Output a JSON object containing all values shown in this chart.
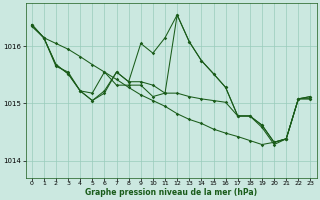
{
  "background_color": "#cbe8e0",
  "plot_bg_color": "#cbe8e0",
  "grid_color": "#99ccbb",
  "line_color": "#1a5c1a",
  "xlabel": "Graphe pression niveau de la mer (hPa)",
  "xlim": [
    -0.5,
    23.5
  ],
  "ylim": [
    1013.7,
    1016.75
  ],
  "yticks": [
    1014,
    1015,
    1016
  ],
  "xticks": [
    0,
    1,
    2,
    3,
    4,
    5,
    6,
    7,
    8,
    9,
    10,
    11,
    12,
    13,
    14,
    15,
    16,
    17,
    18,
    19,
    20,
    21,
    22,
    23
  ],
  "series": [
    [
      1016.35,
      1016.15,
      1016.05,
      1015.95,
      1015.82,
      1015.68,
      1015.55,
      1015.42,
      1015.28,
      1015.15,
      1015.05,
      1014.95,
      1014.82,
      1014.72,
      1014.65,
      1014.55,
      1014.48,
      1014.42,
      1014.35,
      1014.28,
      1014.32,
      1014.38,
      1015.08,
      1015.08
    ],
    [
      1016.38,
      1016.15,
      1015.65,
      1015.55,
      1015.22,
      1015.18,
      1015.55,
      1015.32,
      1015.32,
      1015.32,
      1015.12,
      1015.18,
      1015.18,
      1015.12,
      1015.08,
      1015.05,
      1015.02,
      1014.78,
      1014.78,
      1014.58,
      1014.28,
      1014.38,
      1015.08,
      1015.08
    ],
    [
      1016.38,
      1016.15,
      1015.68,
      1015.52,
      1015.22,
      1015.05,
      1015.22,
      1015.55,
      1015.38,
      1016.05,
      1015.88,
      1016.15,
      1016.55,
      1016.08,
      1015.75,
      1015.52,
      1015.28,
      1014.78,
      1014.78,
      1014.62,
      1014.32,
      1014.38,
      1015.08,
      1015.12
    ],
    [
      1016.38,
      1016.15,
      1015.68,
      1015.52,
      1015.22,
      1015.05,
      1015.18,
      1015.55,
      1015.38,
      1015.38,
      1015.32,
      1015.18,
      1016.55,
      1016.08,
      1015.75,
      1015.52,
      1015.28,
      1014.78,
      1014.78,
      1014.62,
      1014.32,
      1014.38,
      1015.08,
      1015.12
    ]
  ]
}
